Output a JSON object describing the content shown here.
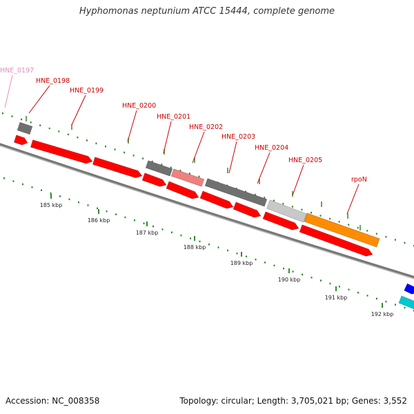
{
  "title": "Hyphomonas neptunium ATCC 15444, complete genome",
  "footer": {
    "accession": "Accession: NC_008358",
    "summary": "Topology: circular; Length: 3,705,021 bp; Genes: 3,552"
  },
  "colors": {
    "backbone": "#888888",
    "cds": "#ff0000",
    "hypothetical": "#707070",
    "light_gray": "#c8c8c8",
    "pink": "#f08080",
    "orange": "#ff8c00",
    "blue": "#0000ff",
    "cyan": "#00c8d0",
    "tick": "#2e8b2e",
    "gene_label": "#cc0000",
    "faded_label": "#e090c0"
  },
  "scale": {
    "unit": "kbp",
    "ticks": [
      {
        "label": "185 kbp"
      },
      {
        "label": "186 kbp"
      },
      {
        "label": "187 kbp"
      },
      {
        "label": "188 kbp"
      },
      {
        "label": "189 kbp"
      },
      {
        "label": "190 kbp"
      },
      {
        "label": "191 kbp"
      },
      {
        "label": "192 kbp"
      }
    ]
  },
  "gene_labels": [
    {
      "text": "HNE_0197",
      "faded": true
    },
    {
      "text": "HNE_0198"
    },
    {
      "text": "HNE_0199"
    },
    {
      "text": "HNE_0200"
    },
    {
      "text": "HNE_0201"
    },
    {
      "text": "HNE_0202"
    },
    {
      "text": "HNE_0203"
    },
    {
      "text": "HNE_0204"
    },
    {
      "text": "HNE_0205"
    },
    {
      "text": "rpoN"
    }
  ],
  "features": [
    {
      "name": "HNE_0197",
      "color": "hypothetical"
    },
    {
      "name": "HNE_0198",
      "color": "cds"
    },
    {
      "name": "HNE_0199",
      "color": "cds"
    },
    {
      "name": "HNE_0200",
      "color": "cds"
    },
    {
      "name": "HNE_0200-hyp",
      "color": "hypothetical"
    },
    {
      "name": "HNE_0201",
      "color": "cds"
    },
    {
      "name": "HNE_0201-hyp",
      "color": "pink"
    },
    {
      "name": "HNE_0202",
      "color": "cds"
    },
    {
      "name": "HNE_0203",
      "color": "hypothetical"
    },
    {
      "name": "HNE_0203-cds",
      "color": "cds"
    },
    {
      "name": "HNE_0204",
      "color": "cds"
    },
    {
      "name": "HNE_0204-cds",
      "color": "cds"
    },
    {
      "name": "HNE_0205",
      "color": "light_gray"
    },
    {
      "name": "HNE_0205-cds",
      "color": "cds"
    },
    {
      "name": "rpoN",
      "color": "orange"
    },
    {
      "name": "next-blue",
      "color": "blue"
    },
    {
      "name": "next-cyan",
      "color": "cyan"
    }
  ]
}
